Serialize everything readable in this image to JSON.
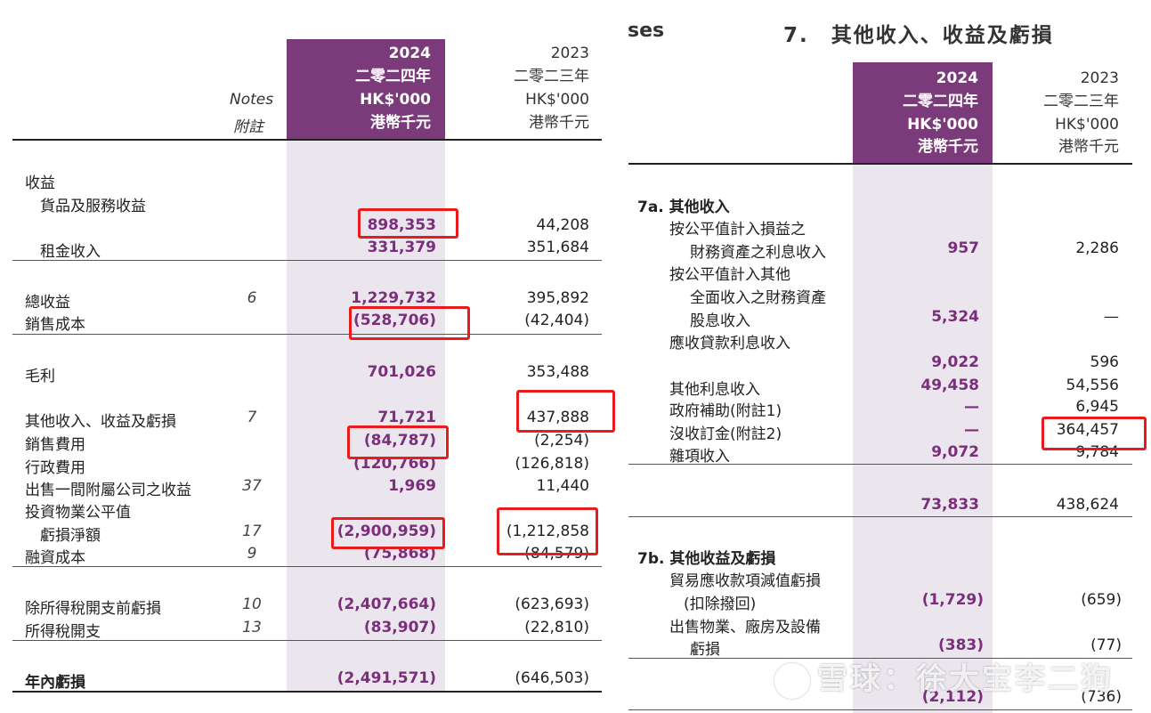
{
  "left": {
    "header": {
      "notes_en": "Notes",
      "notes_zh": "附註",
      "y2024": [
        "2024",
        "二零二四年",
        "HK$'000",
        "港幣千元"
      ],
      "y2023": [
        "2023",
        "二零二三年",
        "HK$'000",
        "港幣千元"
      ]
    },
    "rows": [
      {
        "label": "收益",
        "note": "",
        "v24": "",
        "v23": ""
      },
      {
        "label": "貨品及服務收益",
        "note": "",
        "v24": "",
        "v23": ""
      },
      {
        "label": "",
        "note": "",
        "v24": "898,353",
        "v23": "44,208"
      },
      {
        "label": "租金收入",
        "note": "",
        "v24": "331,379",
        "v23": "351,684"
      },
      {
        "label": "總收益",
        "note": "6",
        "v24": "1,229,732",
        "v23": "395,892"
      },
      {
        "label": "銷售成本",
        "note": "",
        "v24": "(528,706)",
        "v23": "(42,404)"
      },
      {
        "label": "毛利",
        "note": "",
        "v24": "701,026",
        "v23": "353,488"
      },
      {
        "label": "其他收入、收益及虧損",
        "note": "7",
        "v24": "71,721",
        "v23": "437,888"
      },
      {
        "label": "銷售費用",
        "note": "",
        "v24": "(84,787)",
        "v23": "(2,254)"
      },
      {
        "label": "行政費用",
        "note": "",
        "v24": "(120,766)",
        "v23": "(126,818)"
      },
      {
        "label": "出售一間附屬公司之收益",
        "note": "37",
        "v24": "1,969",
        "v23": "11,440"
      },
      {
        "label": "投資物業公平值",
        "note": "",
        "v24": "",
        "v23": ""
      },
      {
        "label": "虧損淨額",
        "note": "17",
        "v24": "(2,900,959)",
        "v23": "(1,212,858"
      },
      {
        "label": "融資成本",
        "note": "9",
        "v24": "(75,868)",
        "v23": "(84,579)"
      },
      {
        "label": "除所得稅開支前虧損",
        "note": "10",
        "v24": "(2,407,664)",
        "v23": "(623,693)"
      },
      {
        "label": "所得稅開支",
        "note": "13",
        "v24": "(83,907)",
        "v23": "(22,810)"
      },
      {
        "label": "年內虧損",
        "note": "",
        "v24": "(2,491,571)",
        "v23": "(646,503)"
      }
    ]
  },
  "right": {
    "top_fragment": "ses",
    "title": "7.　其他收入、收益及虧損",
    "header": {
      "y2024": [
        "2024",
        "二零二四年",
        "HK$'000",
        "港幣千元"
      ],
      "y2023": [
        "2023",
        "二零二三年",
        "HK$'000",
        "港幣千元"
      ]
    },
    "section_a": "7a.  其他收入",
    "rows_a": [
      {
        "label": "按公平值計入損益之",
        "v24": "",
        "v23": ""
      },
      {
        "label": "財務資產之利息收入",
        "v24": "957",
        "v23": "2,286"
      },
      {
        "label": "按公平值計入其他",
        "v24": "",
        "v23": ""
      },
      {
        "label": "全面收入之財務資產",
        "v24": "",
        "v23": ""
      },
      {
        "label": "股息收入",
        "v24": "5,324",
        "v23": "—"
      },
      {
        "label": "應收貸款利息收入",
        "v24": "",
        "v23": ""
      },
      {
        "label": "",
        "v24": "9,022",
        "v23": "596"
      },
      {
        "label": "其他利息收入",
        "v24": "49,458",
        "v23": "54,556"
      },
      {
        "label": "政府補助(附註1)",
        "v24": "—",
        "v23": "6,945"
      },
      {
        "label": "沒收訂金(附註2)",
        "v24": "—",
        "v23": "364,457"
      },
      {
        "label": "雜項收入",
        "v24": "9,072",
        "v23": "9,784"
      }
    ],
    "total_a": {
      "v24": "73,833",
      "v23": "438,624"
    },
    "section_b": "7b.  其他收益及虧損",
    "rows_b": [
      {
        "label": "貿易應收款項減值虧損",
        "v24": "",
        "v23": ""
      },
      {
        "label": "(扣除撥回)",
        "v24": "(1,729)",
        "v23": "(659)"
      },
      {
        "label": "出售物業、廠房及設備",
        "v24": "",
        "v23": ""
      },
      {
        "label": "虧損",
        "v24": "(383)",
        "v23": "(77)"
      }
    ],
    "total_b": {
      "v24": "(2,112)",
      "v23": "(736)"
    }
  },
  "watermark": "雪球：徐大宝李二狗",
  "colors": {
    "header_purple": "#7b3b7b",
    "value_purple": "#7a2f7a",
    "column_shade": "#ebe6ee",
    "highlight_red": "#e81c1c"
  }
}
